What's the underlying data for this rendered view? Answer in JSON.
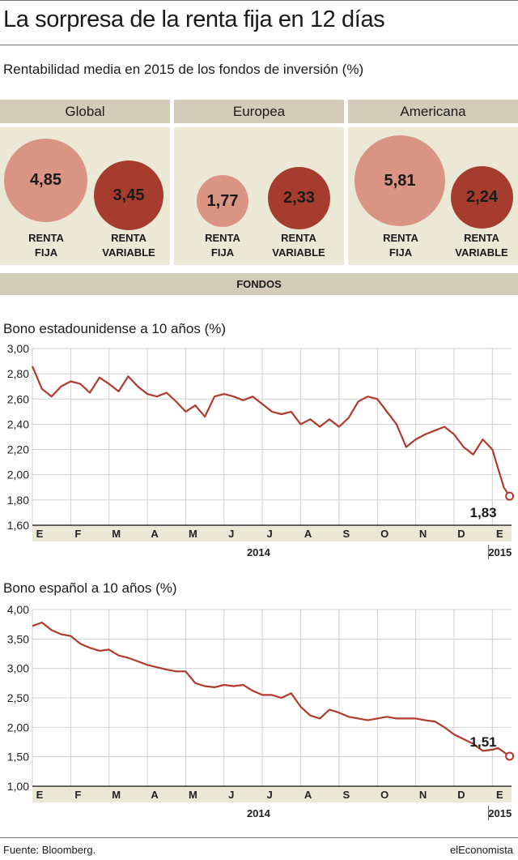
{
  "header": {
    "title": "La sorpresa de la renta fija en 12 días",
    "subtitle": "Rentabilidad media en 2015 de los fondos de inversión (%)"
  },
  "funds": {
    "section_label": "FONDOS",
    "renta_fija_color": "#d99483",
    "renta_variable_color": "#a63c2e",
    "panels": [
      {
        "title": "Global",
        "renta_fija": "4,85",
        "renta_variable": "3,45",
        "rf_value": 4.85,
        "rv_value": 3.45
      },
      {
        "title": "Europea",
        "renta_fija": "1,77",
        "renta_variable": "2,33",
        "rf_value": 1.77,
        "rv_value": 2.33
      },
      {
        "title": "Americana",
        "renta_fija": "5,81",
        "renta_variable": "2,24",
        "rf_value": 5.81,
        "rv_value": 2.24
      }
    ],
    "labels": {
      "rf_line1": "RENTA",
      "rf_line2": "FIJA",
      "rv_line1": "RENTA",
      "rv_line2": "VARIABLE"
    }
  },
  "chart_data": [
    {
      "type": "line",
      "title": "Bono estadounidense a 10 años (%)",
      "ylim": [
        1.6,
        3.0
      ],
      "yticks": [
        "3,00",
        "2,80",
        "2,60",
        "2,40",
        "2,20",
        "2,00",
        "1,80",
        "1,60"
      ],
      "months": [
        "E",
        "F",
        "M",
        "A",
        "M",
        "J",
        "J",
        "A",
        "S",
        "O",
        "N",
        "D",
        "E"
      ],
      "years": [
        "2014",
        "2015"
      ],
      "line_color": "#b03a2e",
      "grid": true,
      "end_label": "1,83",
      "x": [
        0,
        0.25,
        0.5,
        0.75,
        1,
        1.25,
        1.5,
        1.75,
        2,
        2.25,
        2.5,
        2.75,
        3,
        3.25,
        3.5,
        3.75,
        4,
        4.25,
        4.5,
        4.75,
        5,
        5.25,
        5.5,
        5.75,
        6,
        6.25,
        6.5,
        6.75,
        7,
        7.25,
        7.5,
        7.75,
        8,
        8.25,
        8.5,
        8.75,
        9,
        9.25,
        9.5,
        9.75,
        10,
        10.25,
        10.5,
        10.75,
        11,
        11.25,
        11.5,
        11.75,
        12,
        12.15,
        12.3,
        12.45
      ],
      "values": [
        2.86,
        2.68,
        2.62,
        2.7,
        2.74,
        2.72,
        2.65,
        2.77,
        2.72,
        2.66,
        2.78,
        2.7,
        2.64,
        2.62,
        2.65,
        2.58,
        2.5,
        2.55,
        2.46,
        2.62,
        2.64,
        2.62,
        2.59,
        2.62,
        2.56,
        2.5,
        2.48,
        2.5,
        2.4,
        2.44,
        2.38,
        2.44,
        2.38,
        2.45,
        2.58,
        2.62,
        2.6,
        2.5,
        2.4,
        2.22,
        2.28,
        2.32,
        2.35,
        2.38,
        2.32,
        2.22,
        2.16,
        2.28,
        2.2,
        2.05,
        1.9,
        1.83
      ]
    },
    {
      "type": "line",
      "title": "Bono español a 10 años (%)",
      "ylim": [
        1.0,
        4.0
      ],
      "yticks": [
        "4,00",
        "3,50",
        "3,00",
        "2,50",
        "2,00",
        "1,50",
        "1,00"
      ],
      "months": [
        "E",
        "F",
        "M",
        "A",
        "M",
        "J",
        "J",
        "A",
        "S",
        "O",
        "N",
        "D",
        "E"
      ],
      "years": [
        "2014",
        "2015"
      ],
      "line_color": "#b03a2e",
      "grid": true,
      "end_label": "1,51",
      "x": [
        0,
        0.25,
        0.5,
        0.75,
        1,
        1.25,
        1.5,
        1.75,
        2,
        2.25,
        2.5,
        2.75,
        3,
        3.25,
        3.5,
        3.75,
        4,
        4.25,
        4.5,
        4.75,
        5,
        5.25,
        5.5,
        5.75,
        6,
        6.25,
        6.5,
        6.75,
        7,
        7.25,
        7.5,
        7.75,
        8,
        8.25,
        8.5,
        8.75,
        9,
        9.25,
        9.5,
        9.75,
        10,
        10.25,
        10.5,
        10.75,
        11,
        11.25,
        11.5,
        11.75,
        12,
        12.15,
        12.3,
        12.45
      ],
      "values": [
        3.72,
        3.78,
        3.65,
        3.58,
        3.55,
        3.42,
        3.35,
        3.3,
        3.32,
        3.22,
        3.18,
        3.12,
        3.06,
        3.02,
        2.98,
        2.95,
        2.95,
        2.75,
        2.7,
        2.68,
        2.72,
        2.7,
        2.72,
        2.62,
        2.55,
        2.55,
        2.5,
        2.58,
        2.35,
        2.2,
        2.15,
        2.3,
        2.25,
        2.18,
        2.15,
        2.12,
        2.15,
        2.18,
        2.15,
        2.15,
        2.15,
        2.12,
        2.1,
        2.0,
        1.88,
        1.8,
        1.72,
        1.6,
        1.62,
        1.65,
        1.58,
        1.51
      ]
    }
  ],
  "footer": {
    "source": "Fuente: Bloomberg.",
    "brand": "elEconomista"
  }
}
